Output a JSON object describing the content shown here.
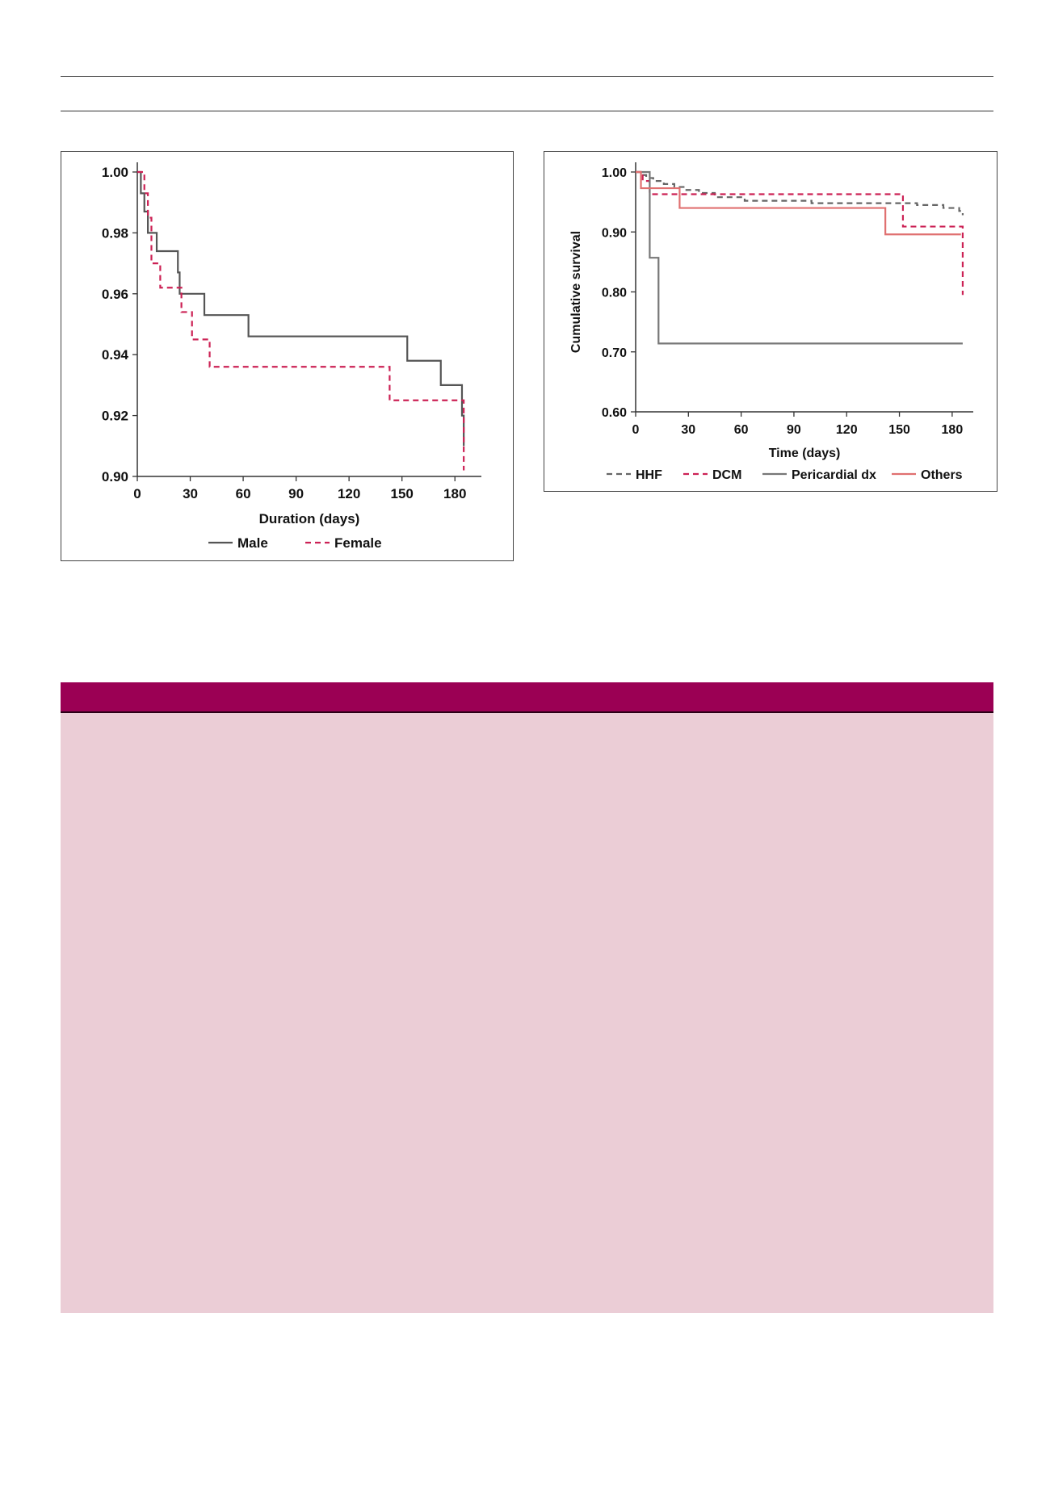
{
  "chart_data": [
    {
      "type": "line",
      "step": true,
      "xlabel": "Duration (days)",
      "ylabel": "",
      "xlim": [
        0,
        195
      ],
      "ylim": [
        0.9,
        1.0
      ],
      "xticks": [
        "0",
        "30",
        "60",
        "90",
        "120",
        "150",
        "180"
      ],
      "yticks": [
        "1.00",
        "0.98",
        "0.96",
        "0.94",
        "0.92",
        "0.90"
      ],
      "legend_position": "bottom",
      "series": [
        {
          "name": "Male",
          "color": "#555555",
          "dash": "solid",
          "x": [
            0,
            2,
            4,
            6,
            11,
            23,
            24,
            38,
            63,
            153,
            172,
            184,
            185
          ],
          "y": [
            1.0,
            0.993,
            0.987,
            0.98,
            0.974,
            0.967,
            0.96,
            0.953,
            0.946,
            0.938,
            0.93,
            0.92,
            0.91
          ]
        },
        {
          "name": "Female",
          "color": "#cc2255",
          "dash": "dashed",
          "x": [
            0,
            4,
            6,
            8,
            13,
            25,
            31,
            41,
            143,
            185
          ],
          "y": [
            1.0,
            0.993,
            0.985,
            0.97,
            0.962,
            0.954,
            0.945,
            0.936,
            0.925,
            0.902
          ]
        }
      ]
    },
    {
      "type": "line",
      "step": true,
      "xlabel": "Time (days)",
      "ylabel": "Cumulative survival",
      "xlim": [
        0,
        192
      ],
      "ylim": [
        0.6,
        1.0
      ],
      "xticks": [
        "0",
        "30",
        "60",
        "90",
        "120",
        "150",
        "180"
      ],
      "yticks": [
        "1.00",
        "0.90",
        "0.80",
        "0.70",
        "0.60"
      ],
      "legend_position": "bottom",
      "series": [
        {
          "name": "HHF",
          "color": "#666666",
          "dash": "dashed",
          "x": [
            0,
            3,
            6,
            10,
            16,
            22,
            28,
            36,
            45,
            62,
            100,
            160,
            175,
            184,
            186
          ],
          "y": [
            1.0,
            0.995,
            0.99,
            0.985,
            0.98,
            0.975,
            0.97,
            0.965,
            0.958,
            0.952,
            0.948,
            0.945,
            0.94,
            0.935,
            0.928
          ]
        },
        {
          "name": "DCM",
          "color": "#cc2255",
          "dash": "dashed",
          "x": [
            0,
            4,
            8,
            152,
            186
          ],
          "y": [
            1.0,
            0.985,
            0.963,
            0.909,
            0.795
          ]
        },
        {
          "name": "Pericardial dx",
          "color": "#777777",
          "dash": "solid",
          "x": [
            0,
            8,
            13,
            186
          ],
          "y": [
            1.0,
            0.857,
            0.714,
            0.714
          ]
        },
        {
          "name": "Others",
          "color": "#e07070",
          "dash": "solid",
          "x": [
            0,
            3,
            25,
            142,
            185
          ],
          "y": [
            1.0,
            0.973,
            0.94,
            0.896,
            0.896
          ]
        }
      ]
    }
  ]
}
